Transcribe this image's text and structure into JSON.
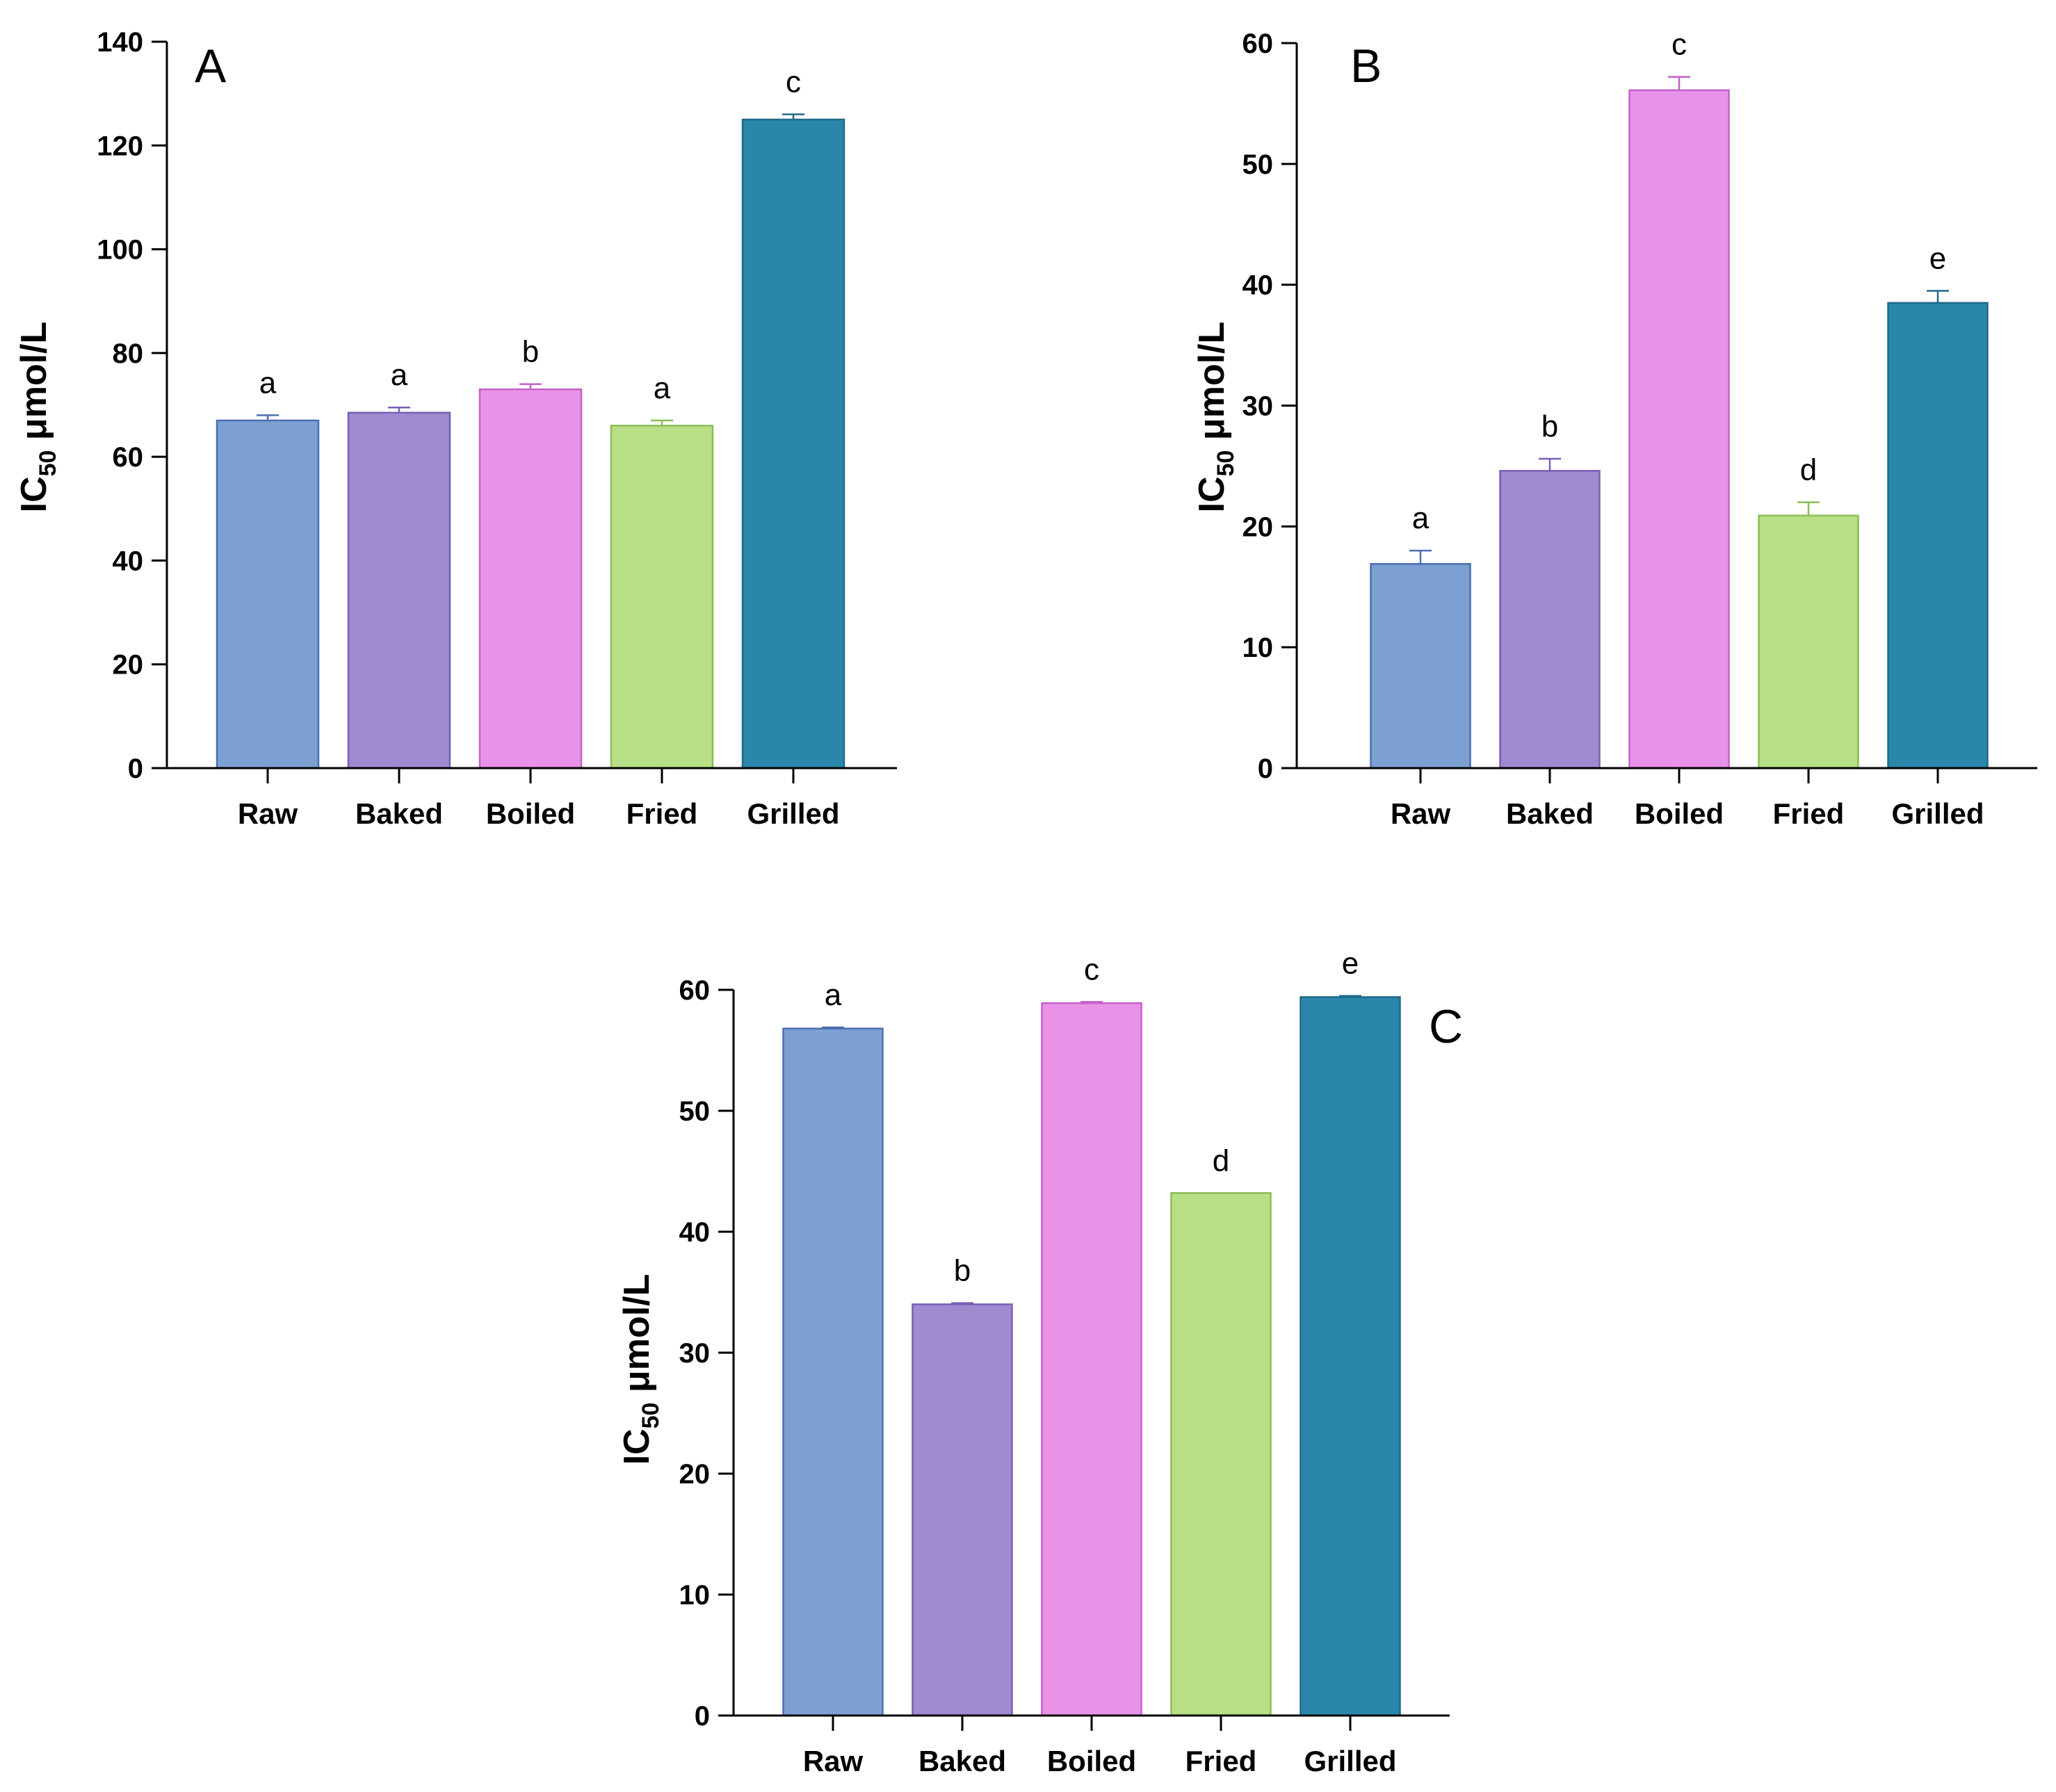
{
  "chart_data": [
    {
      "type": "bar",
      "panel": "A",
      "categories": [
        "Raw",
        "Baked",
        "Boiled",
        "Fried",
        "Grilled"
      ],
      "values": [
        67,
        68.5,
        73,
        66,
        125
      ],
      "errors": [
        1,
        1,
        1,
        1,
        1
      ],
      "significance": [
        "a",
        "a",
        "b",
        "a",
        "c"
      ],
      "ylabel": "IC",
      "ylabel_sub": "50",
      "ylabel_unit": " μmol/L",
      "ylim": [
        0,
        140
      ],
      "yticks": [
        0,
        20,
        40,
        60,
        80,
        100,
        120,
        140
      ],
      "colors": [
        "#7da0d3",
        "#a08ad0",
        "#e893e8",
        "#b9df86",
        "#2a87ab"
      ],
      "edge_colors": [
        "#4b6fb0",
        "#7a5eb5",
        "#c560c9",
        "#8cbd55",
        "#1f6a88"
      ]
    },
    {
      "type": "bar",
      "panel": "B",
      "categories": [
        "Raw",
        "Baked",
        "Boiled",
        "Fried",
        "Grilled"
      ],
      "values": [
        16.9,
        24.6,
        56.1,
        20.9,
        38.5
      ],
      "errors": [
        1.1,
        1.0,
        1.1,
        1.1,
        1.0
      ],
      "significance": [
        "a",
        "b",
        "c",
        "d",
        "e"
      ],
      "ylabel": "IC",
      "ylabel_sub": "50",
      "ylabel_unit": " μmol/L",
      "ylim": [
        0,
        60
      ],
      "yticks": [
        0,
        10,
        20,
        30,
        40,
        50,
        60
      ],
      "colors": [
        "#7da0d3",
        "#a08ad0",
        "#e893e8",
        "#b9df86",
        "#2a87ab"
      ],
      "edge_colors": [
        "#4b6fb0",
        "#7a5eb5",
        "#c560c9",
        "#8cbd55",
        "#1f6a88"
      ]
    },
    {
      "type": "bar",
      "panel": "C",
      "categories": [
        "Raw",
        "Baked",
        "Boiled",
        "Fried",
        "Grilled"
      ],
      "values": [
        56.8,
        34.0,
        58.9,
        43.2,
        59.4
      ],
      "errors": [
        0.1,
        0.1,
        0.1,
        0,
        0.1
      ],
      "significance": [
        "a",
        "b",
        "c",
        "d",
        "e"
      ],
      "ylabel": "IC",
      "ylabel_sub": "50",
      "ylabel_unit": " μmol/L",
      "ylim": [
        0,
        60
      ],
      "yticks": [
        0,
        10,
        20,
        30,
        40,
        50,
        60
      ],
      "colors": [
        "#7da0d3",
        "#a08ad0",
        "#e893e8",
        "#b9df86",
        "#2a87ab"
      ],
      "edge_colors": [
        "#4b6fb0",
        "#7a5eb5",
        "#c560c9",
        "#8cbd55",
        "#1f6a88"
      ]
    }
  ]
}
